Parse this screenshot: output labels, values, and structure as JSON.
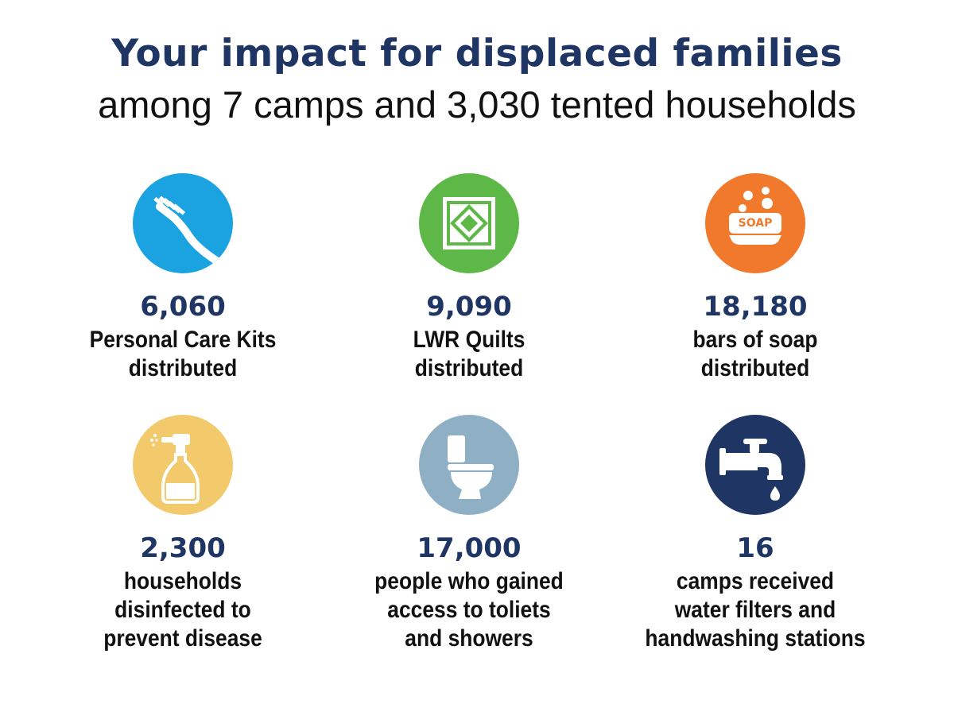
{
  "header": {
    "title": "Your impact for displaced families",
    "subtitle": "among 7 camps and 3,030 tented households"
  },
  "stats": [
    {
      "icon": "toothbrush-icon",
      "color": "#1aa3e0",
      "number": "6,060",
      "lines": [
        "Personal Care Kits",
        "distributed"
      ]
    },
    {
      "icon": "quilt-icon",
      "color": "#5db848",
      "number": "9,090",
      "lines": [
        "LWR Quilts",
        "distributed"
      ]
    },
    {
      "icon": "soap-icon",
      "color": "#f0792b",
      "number": "18,180",
      "lines": [
        "bars of soap",
        "distributed"
      ]
    },
    {
      "icon": "spray-bottle-icon",
      "color": "#f2c96b",
      "number": "2,300",
      "lines": [
        "households",
        "disinfected to",
        "prevent disease"
      ]
    },
    {
      "icon": "toilet-icon",
      "color": "#8fb0c4",
      "number": "17,000",
      "lines": [
        "people who gained",
        "access to toliets",
        "and showers"
      ]
    },
    {
      "icon": "water-tap-icon",
      "color": "#1f3564",
      "number": "16",
      "lines": [
        "camps received",
        "water filters and",
        "handwashing stations"
      ]
    }
  ],
  "icon_labels": {
    "soap": "SOAP"
  }
}
